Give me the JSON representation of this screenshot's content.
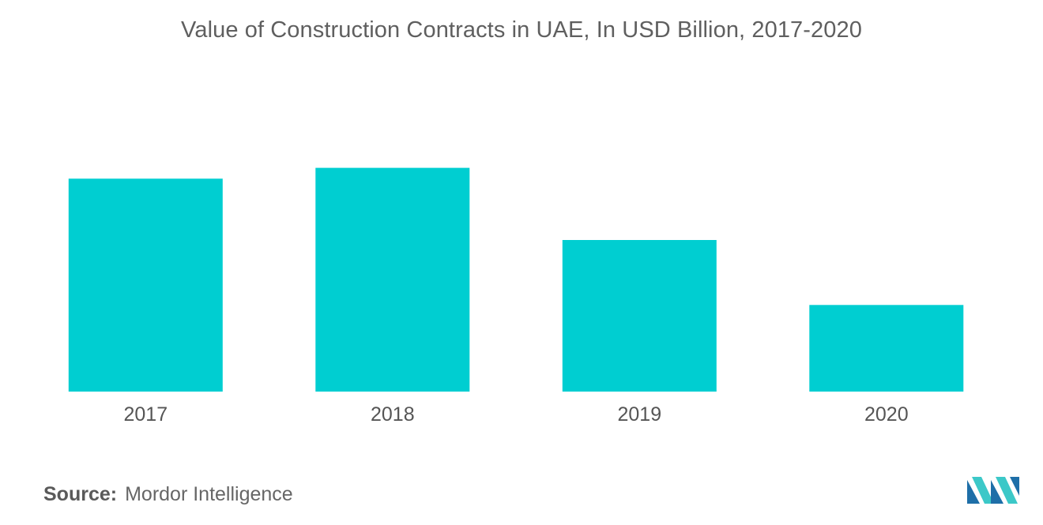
{
  "chart_data": {
    "type": "bar",
    "title": "Value of Construction Contracts in UAE, In USD Billion, 2017-2020",
    "categories": [
      "2017",
      "2018",
      "2019",
      "2020"
    ],
    "values": [
      29.5,
      31.0,
      21.0,
      12.0
    ],
    "ylim": [
      0,
      35
    ],
    "xlabel": "",
    "ylabel": "",
    "grid": false,
    "legend": "none",
    "bar_color": "#00ced1"
  },
  "source": {
    "label": "Source:",
    "text": "Mordor Intelligence"
  },
  "logo": {
    "icon": "mordor-intelligence-logo",
    "colors": [
      "#1e6fa8",
      "#3cc8c8"
    ]
  }
}
